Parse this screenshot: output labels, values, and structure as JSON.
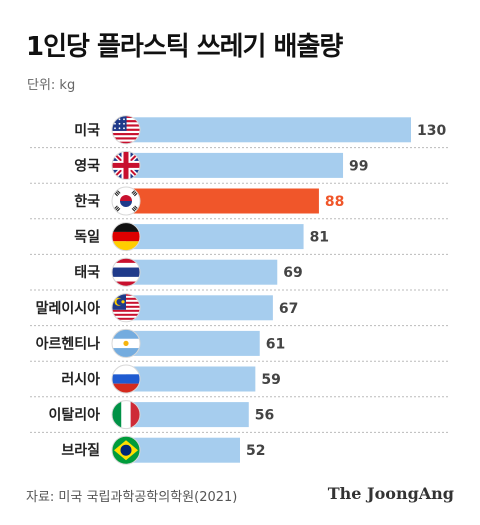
{
  "title": "1인당 플라스틱 쓰레기 배출량",
  "unit_label": "단위: kg",
  "source": "자료: 미국 국립과학공학의학원(2021)",
  "brand": "The JoongAng",
  "colors": {
    "bar": "#a6cdee",
    "highlight": "#f0562a",
    "value_text": "#444444",
    "highlight_text": "#f0562a"
  },
  "chart_data": {
    "type": "bar",
    "orientation": "horizontal",
    "unit": "kg",
    "categories": [
      "미국",
      "영국",
      "한국",
      "독일",
      "태국",
      "말레이시아",
      "아르헨티나",
      "러시아",
      "이탈리아",
      "브라질"
    ],
    "values": [
      130,
      99,
      88,
      81,
      69,
      67,
      61,
      59,
      56,
      52
    ],
    "highlight": "한국",
    "flag_icons": [
      "flag-us-icon",
      "flag-uk-icon",
      "flag-kr-icon",
      "flag-de-icon",
      "flag-th-icon",
      "flag-my-icon",
      "flag-ar-icon",
      "flag-ru-icon",
      "flag-it-icon",
      "flag-br-icon"
    ]
  }
}
